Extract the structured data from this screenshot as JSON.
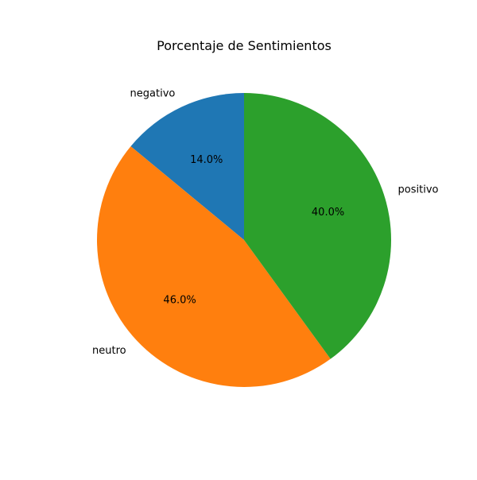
{
  "chart_data": {
    "type": "pie",
    "title": "Porcentaje de Sentimientos",
    "slices": [
      {
        "label": "negativo",
        "value": 14.0,
        "pct_label": "14.0%",
        "color": "#1f77b4"
      },
      {
        "label": "neutro",
        "value": 46.0,
        "pct_label": "46.0%",
        "color": "#ff7f0e"
      },
      {
        "label": "positivo",
        "value": 40.0,
        "pct_label": "40.0%",
        "color": "#2ca02c"
      }
    ],
    "start_angle_deg": 90,
    "direction": "counterclockwise"
  }
}
